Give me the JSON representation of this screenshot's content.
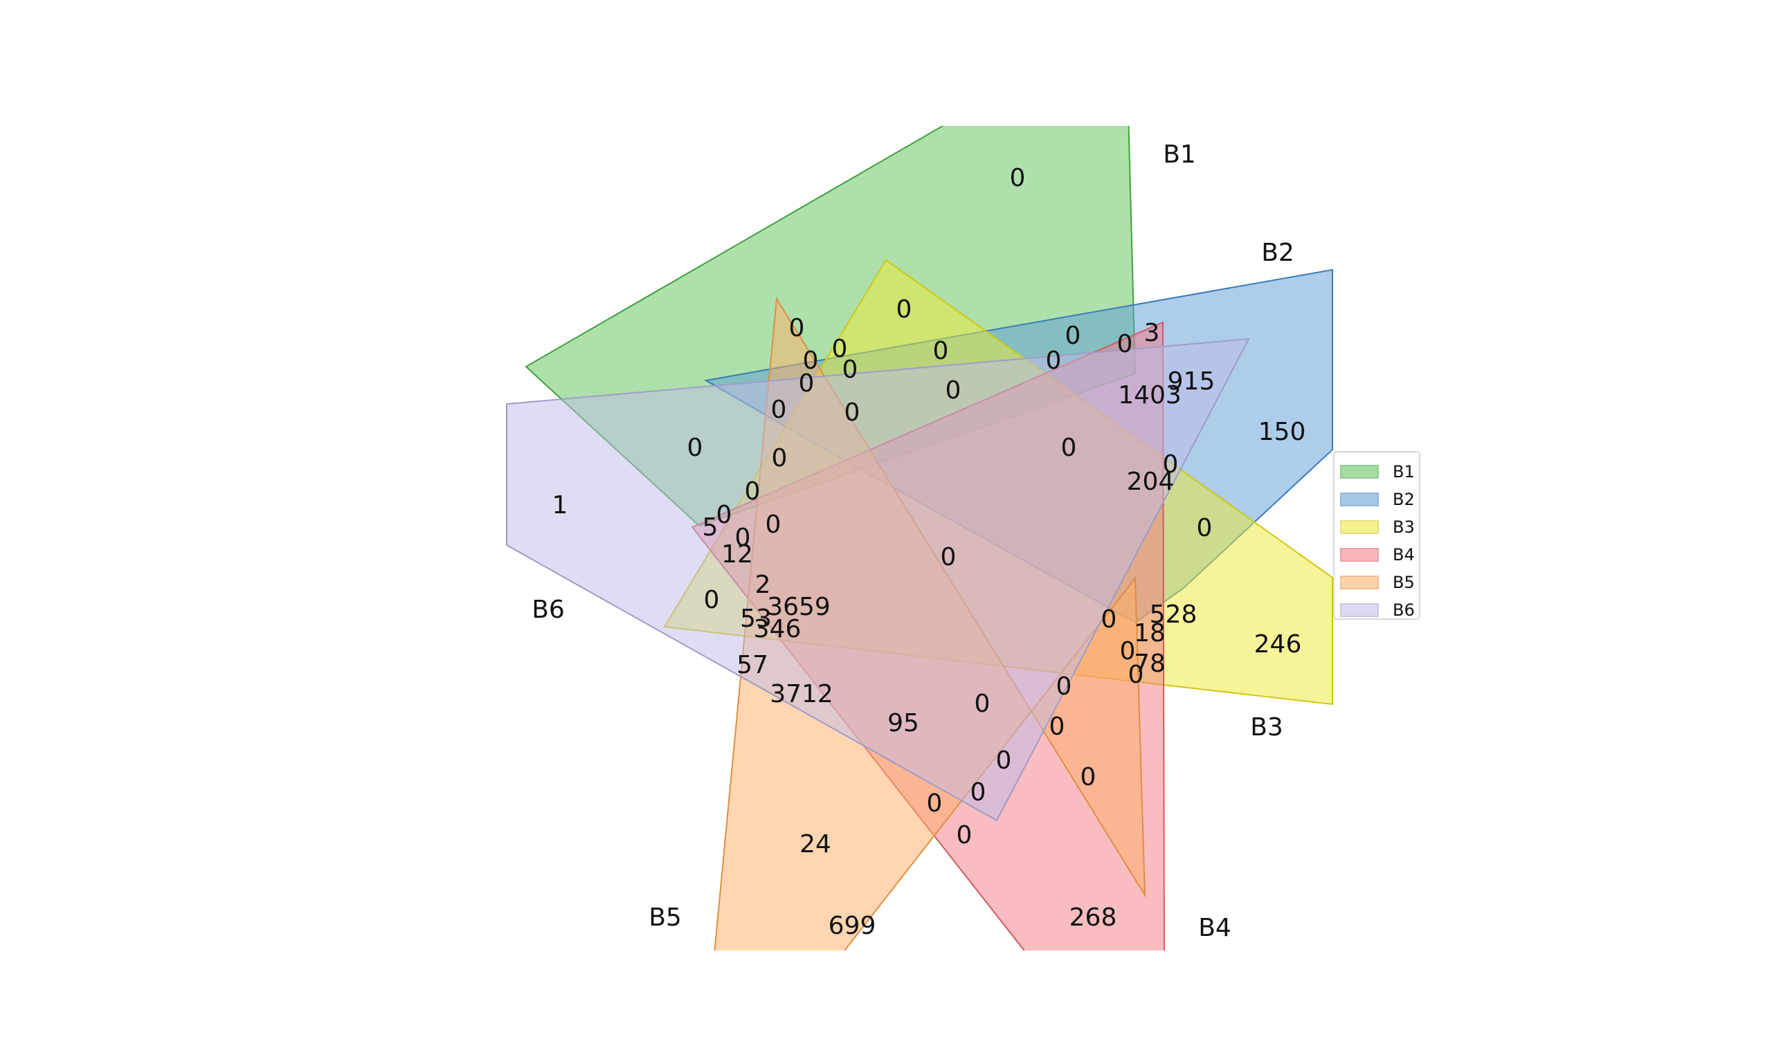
{
  "sets": [
    {
      "name": "B1",
      "color": "#5dc25a",
      "edge": "#3da23a"
    },
    {
      "name": "B2",
      "color": "#5b9bd5",
      "edge": "#3b7bb5"
    },
    {
      "name": "B3",
      "color": "#eeea34",
      "edge": "#cec814"
    },
    {
      "name": "B4",
      "color": "#f47a82",
      "edge": "#d45a62"
    },
    {
      "name": "B5",
      "color": "#ffae63",
      "edge": "#df8e43"
    },
    {
      "name": "B6",
      "color": "#bfbce8",
      "edge": "#9f9cc8"
    }
  ],
  "region_values": [
    "0",
    "0",
    "0",
    "0",
    "0",
    "0",
    "0",
    "0",
    "3",
    "0",
    "0",
    "0",
    "0",
    "915",
    "1403",
    "150",
    "1",
    "0",
    "0",
    "0",
    "0",
    "204",
    "0",
    "0",
    "0",
    "0",
    "0",
    "5",
    "0",
    "12",
    "0",
    "0",
    "2",
    "0",
    "3659",
    "528",
    "53",
    "346",
    "0",
    "18",
    "246",
    "0",
    "78",
    "57",
    "0",
    "0",
    "3712",
    "0",
    "95",
    "0",
    "0",
    "0",
    "0",
    "0",
    "0",
    "24",
    "268",
    "699"
  ]
}
